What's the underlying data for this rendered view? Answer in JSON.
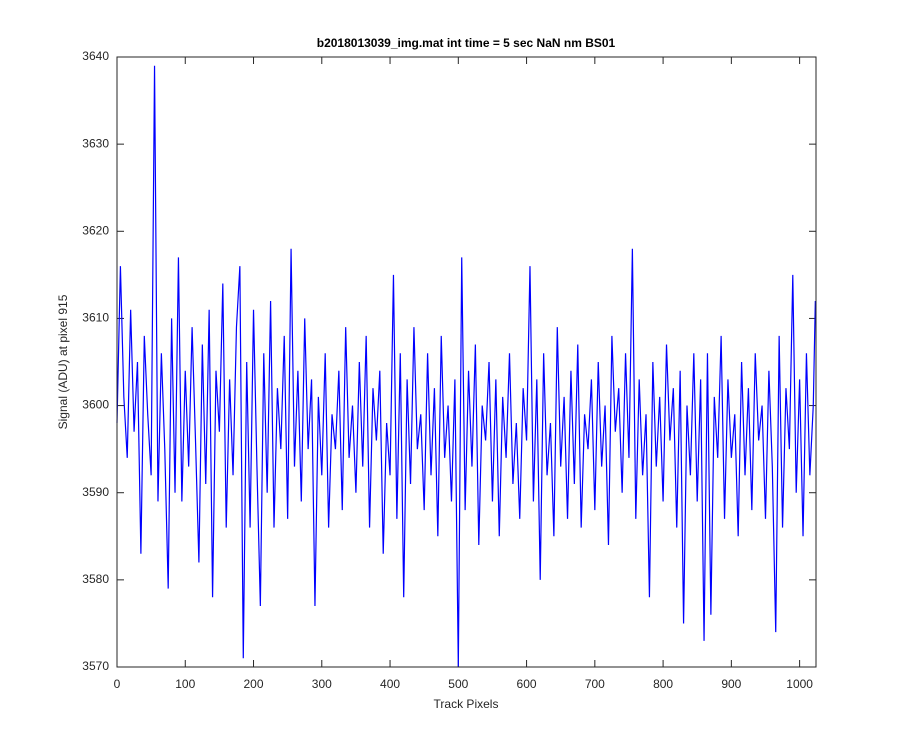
{
  "chart_data": {
    "type": "line",
    "title": "b2018013039_img.mat int time = 5 sec  NaN nm BS01",
    "xlabel": "Track Pixels",
    "ylabel": "Signal (ADU) at pixel 915",
    "xlim": [
      0,
      1024
    ],
    "ylim": [
      3570,
      3640
    ],
    "xticks": [
      0,
      100,
      200,
      300,
      400,
      500,
      600,
      700,
      800,
      900,
      1000
    ],
    "yticks": [
      3570,
      3580,
      3590,
      3600,
      3610,
      3620,
      3630,
      3640
    ],
    "grid": false,
    "x": [
      0,
      5,
      10,
      15,
      20,
      25,
      30,
      35,
      40,
      45,
      50,
      55,
      60,
      65,
      70,
      75,
      80,
      85,
      90,
      95,
      100,
      105,
      110,
      115,
      120,
      125,
      130,
      135,
      140,
      145,
      150,
      155,
      160,
      165,
      170,
      175,
      180,
      185,
      190,
      195,
      200,
      205,
      210,
      215,
      220,
      225,
      230,
      235,
      240,
      245,
      250,
      255,
      260,
      265,
      270,
      275,
      280,
      285,
      290,
      295,
      300,
      305,
      310,
      315,
      320,
      325,
      330,
      335,
      340,
      345,
      350,
      355,
      360,
      365,
      370,
      375,
      380,
      385,
      390,
      395,
      400,
      405,
      410,
      415,
      420,
      425,
      430,
      435,
      440,
      445,
      450,
      455,
      460,
      465,
      470,
      475,
      480,
      485,
      490,
      495,
      500,
      505,
      510,
      515,
      520,
      525,
      530,
      535,
      540,
      545,
      550,
      555,
      560,
      565,
      570,
      575,
      580,
      585,
      590,
      595,
      600,
      605,
      610,
      615,
      620,
      625,
      630,
      635,
      640,
      645,
      650,
      655,
      660,
      665,
      670,
      675,
      680,
      685,
      690,
      695,
      700,
      705,
      710,
      715,
      720,
      725,
      730,
      735,
      740,
      745,
      750,
      755,
      760,
      765,
      770,
      775,
      780,
      785,
      790,
      795,
      800,
      805,
      810,
      815,
      820,
      825,
      830,
      835,
      840,
      845,
      850,
      855,
      860,
      865,
      870,
      875,
      880,
      885,
      890,
      895,
      900,
      905,
      910,
      915,
      920,
      925,
      930,
      935,
      940,
      945,
      950,
      955,
      960,
      965,
      970,
      975,
      980,
      985,
      990,
      995,
      1000,
      1005,
      1010,
      1015,
      1020,
      1023
    ],
    "series": [
      {
        "name": "signal",
        "color": "#0000ff",
        "values": [
          3598,
          3616,
          3601,
          3594,
          3611,
          3597,
          3605,
          3583,
          3608,
          3599,
          3592,
          3639,
          3589,
          3606,
          3595,
          3579,
          3610,
          3590,
          3617,
          3589,
          3604,
          3593,
          3609,
          3596,
          3582,
          3607,
          3591,
          3611,
          3578,
          3604,
          3597,
          3614,
          3586,
          3603,
          3592,
          3609,
          3616,
          3571,
          3605,
          3586,
          3611,
          3593,
          3577,
          3606,
          3590,
          3612,
          3586,
          3602,
          3595,
          3608,
          3587,
          3618,
          3593,
          3604,
          3589,
          3610,
          3595,
          3603,
          3577,
          3601,
          3592,
          3606,
          3586,
          3599,
          3595,
          3604,
          3588,
          3609,
          3594,
          3600,
          3590,
          3605,
          3593,
          3608,
          3586,
          3602,
          3596,
          3604,
          3583,
          3598,
          3592,
          3615,
          3587,
          3606,
          3578,
          3603,
          3591,
          3609,
          3595,
          3599,
          3588,
          3606,
          3592,
          3602,
          3585,
          3608,
          3594,
          3600,
          3589,
          3603,
          3570,
          3617,
          3588,
          3604,
          3593,
          3607,
          3584,
          3600,
          3596,
          3605,
          3589,
          3603,
          3585,
          3601,
          3594,
          3606,
          3591,
          3598,
          3587,
          3602,
          3596,
          3616,
          3589,
          3603,
          3580,
          3606,
          3592,
          3598,
          3585,
          3609,
          3593,
          3601,
          3587,
          3604,
          3591,
          3607,
          3586,
          3599,
          3595,
          3603,
          3588,
          3605,
          3593,
          3600,
          3584,
          3608,
          3597,
          3602,
          3590,
          3606,
          3594,
          3618,
          3587,
          3603,
          3592,
          3599,
          3578,
          3605,
          3593,
          3601,
          3589,
          3607,
          3596,
          3602,
          3586,
          3604,
          3575,
          3600,
          3592,
          3606,
          3589,
          3603,
          3573,
          3606,
          3576,
          3601,
          3594,
          3608,
          3587,
          3603,
          3594,
          3599,
          3585,
          3605,
          3592,
          3602,
          3588,
          3606,
          3596,
          3600,
          3587,
          3604,
          3593,
          3574,
          3608,
          3586,
          3602,
          3595,
          3615,
          3590,
          3603,
          3585,
          3606,
          3592,
          3600,
          3612
        ]
      }
    ]
  }
}
